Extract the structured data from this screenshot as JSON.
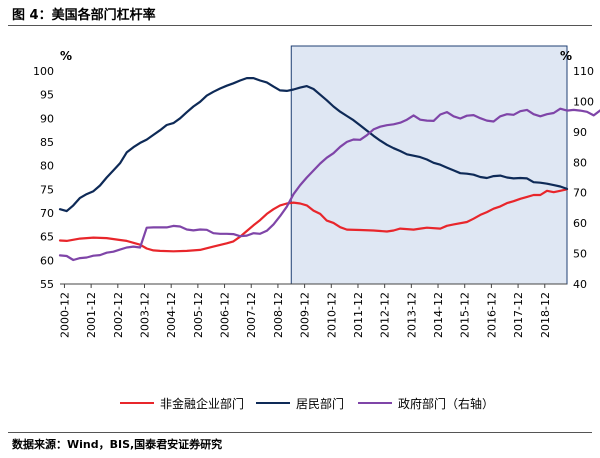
{
  "figure": {
    "title": "图 4：美国各部门杠杆率",
    "source": "数据来源：Wind，BIS,国泰君安证券研究"
  },
  "chart_data": {
    "type": "line",
    "left_axis": {
      "unit": "%",
      "min": 55,
      "max": 100,
      "ticks": [
        55,
        60,
        65,
        70,
        75,
        80,
        85,
        90,
        95,
        100
      ]
    },
    "right_axis": {
      "unit": "%",
      "min": 40,
      "max": 110,
      "ticks": [
        40,
        50,
        60,
        70,
        80,
        90,
        100,
        110
      ]
    },
    "x_ticks": [
      "2000-12",
      "2001-12",
      "2002-12",
      "2003-12",
      "2004-12",
      "2005-12",
      "2006-12",
      "2007-12",
      "2008-12",
      "2009-12",
      "2010-12",
      "2011-12",
      "2012-12",
      "2013-12",
      "2014-12",
      "2015-12",
      "2016-12",
      "2017-12",
      "2018-12"
    ],
    "shaded_start": "2009-06",
    "colors": {
      "nonfin": "#e8262b",
      "household": "#0e2a57",
      "gov": "#7f45a8",
      "shade": "#dfe7f3",
      "shade_border": "#1f3f73"
    },
    "series": [
      {
        "name": "非金融企业部门",
        "axis": "left",
        "color": "#e8262b",
        "points": [
          [
            2000.75,
            64.2
          ],
          [
            2001.0,
            64.1
          ],
          [
            2001.5,
            64.6
          ],
          [
            2002.0,
            64.8
          ],
          [
            2002.5,
            64.7
          ],
          [
            2003.0,
            64.3
          ],
          [
            2003.25,
            64.1
          ],
          [
            2003.75,
            63.3
          ],
          [
            2004.0,
            62.5
          ],
          [
            2004.25,
            62.1
          ],
          [
            2004.5,
            62.0
          ],
          [
            2005.0,
            61.9
          ],
          [
            2005.5,
            62.0
          ],
          [
            2006.0,
            62.2
          ],
          [
            2006.5,
            62.9
          ],
          [
            2007.0,
            63.6
          ],
          [
            2007.25,
            64.0
          ],
          [
            2007.5,
            65.0
          ],
          [
            2007.75,
            66.2
          ],
          [
            2008.0,
            67.4
          ],
          [
            2008.25,
            68.5
          ],
          [
            2008.5,
            69.8
          ],
          [
            2008.75,
            70.8
          ],
          [
            2009.0,
            71.6
          ],
          [
            2009.25,
            72.0
          ],
          [
            2009.5,
            72.2
          ],
          [
            2009.75,
            72.0
          ],
          [
            2010.0,
            71.6
          ],
          [
            2010.25,
            70.5
          ],
          [
            2010.5,
            69.8
          ],
          [
            2010.75,
            68.4
          ],
          [
            2011.0,
            67.9
          ],
          [
            2011.25,
            67.0
          ],
          [
            2011.5,
            66.5
          ],
          [
            2012.0,
            66.4
          ],
          [
            2012.5,
            66.3
          ],
          [
            2013.0,
            66.1
          ],
          [
            2013.25,
            66.3
          ],
          [
            2013.5,
            66.7
          ],
          [
            2014.0,
            66.5
          ],
          [
            2014.25,
            66.7
          ],
          [
            2014.5,
            66.9
          ],
          [
            2015.0,
            66.7
          ],
          [
            2015.25,
            67.3
          ],
          [
            2015.5,
            67.6
          ],
          [
            2016.0,
            68.1
          ],
          [
            2016.25,
            68.8
          ],
          [
            2016.5,
            69.6
          ],
          [
            2016.75,
            70.2
          ],
          [
            2017.0,
            70.9
          ],
          [
            2017.25,
            71.4
          ],
          [
            2017.5,
            72.1
          ],
          [
            2017.75,
            72.5
          ],
          [
            2018.0,
            73.0
          ],
          [
            2018.25,
            73.4
          ],
          [
            2018.5,
            73.8
          ],
          [
            2018.75,
            73.8
          ],
          [
            2019.0,
            74.7
          ],
          [
            2019.25,
            74.4
          ],
          [
            2019.5,
            74.7
          ],
          [
            2019.75,
            75.0
          ]
        ]
      },
      {
        "name": "居民部门",
        "axis": "left",
        "color": "#0e2a57",
        "points": [
          [
            2000.75,
            70.8
          ],
          [
            2001.0,
            70.4
          ],
          [
            2001.25,
            71.6
          ],
          [
            2001.5,
            73.2
          ],
          [
            2001.75,
            74.0
          ],
          [
            2002.0,
            74.6
          ],
          [
            2002.25,
            75.8
          ],
          [
            2002.5,
            77.5
          ],
          [
            2002.75,
            79.0
          ],
          [
            2003.0,
            80.5
          ],
          [
            2003.25,
            82.8
          ],
          [
            2003.5,
            83.9
          ],
          [
            2003.75,
            84.8
          ],
          [
            2004.0,
            85.5
          ],
          [
            2004.25,
            86.5
          ],
          [
            2004.5,
            87.5
          ],
          [
            2004.75,
            88.6
          ],
          [
            2005.0,
            89.0
          ],
          [
            2005.25,
            90.0
          ],
          [
            2005.5,
            91.3
          ],
          [
            2005.75,
            92.5
          ],
          [
            2006.0,
            93.5
          ],
          [
            2006.25,
            94.8
          ],
          [
            2006.5,
            95.6
          ],
          [
            2006.75,
            96.3
          ],
          [
            2007.0,
            96.9
          ],
          [
            2007.25,
            97.4
          ],
          [
            2007.5,
            98.0
          ],
          [
            2007.75,
            98.5
          ],
          [
            2008.0,
            98.5
          ],
          [
            2008.25,
            98.0
          ],
          [
            2008.5,
            97.6
          ],
          [
            2008.75,
            96.7
          ],
          [
            2009.0,
            95.9
          ],
          [
            2009.25,
            95.8
          ],
          [
            2009.5,
            96.1
          ],
          [
            2009.75,
            96.5
          ],
          [
            2010.0,
            96.8
          ],
          [
            2010.25,
            96.2
          ],
          [
            2010.5,
            95.0
          ],
          [
            2010.75,
            93.8
          ],
          [
            2011.0,
            92.5
          ],
          [
            2011.25,
            91.4
          ],
          [
            2011.5,
            90.5
          ],
          [
            2011.75,
            89.6
          ],
          [
            2012.0,
            88.5
          ],
          [
            2012.25,
            87.4
          ],
          [
            2012.5,
            86.3
          ],
          [
            2012.75,
            85.3
          ],
          [
            2013.0,
            84.4
          ],
          [
            2013.25,
            83.7
          ],
          [
            2013.5,
            83.1
          ],
          [
            2013.75,
            82.4
          ],
          [
            2014.0,
            82.1
          ],
          [
            2014.25,
            81.8
          ],
          [
            2014.5,
            81.3
          ],
          [
            2014.75,
            80.6
          ],
          [
            2015.0,
            80.2
          ],
          [
            2015.25,
            79.6
          ],
          [
            2015.5,
            79.0
          ],
          [
            2015.75,
            78.4
          ],
          [
            2016.0,
            78.3
          ],
          [
            2016.25,
            78.1
          ],
          [
            2016.5,
            77.6
          ],
          [
            2016.75,
            77.4
          ],
          [
            2017.0,
            77.8
          ],
          [
            2017.25,
            77.9
          ],
          [
            2017.5,
            77.5
          ],
          [
            2017.75,
            77.3
          ],
          [
            2018.0,
            77.4
          ],
          [
            2018.25,
            77.3
          ],
          [
            2018.5,
            76.5
          ],
          [
            2018.75,
            76.4
          ],
          [
            2019.0,
            76.2
          ],
          [
            2019.25,
            75.9
          ],
          [
            2019.5,
            75.6
          ],
          [
            2019.75,
            75.1
          ]
        ]
      },
      {
        "name": "政府部门（右轴）",
        "axis": "right",
        "color": "#7f45a8",
        "points": [
          [
            2000.75,
            49.4
          ],
          [
            2001.0,
            49.2
          ],
          [
            2001.25,
            47.9
          ],
          [
            2001.5,
            48.5
          ],
          [
            2001.75,
            48.7
          ],
          [
            2002.0,
            49.3
          ],
          [
            2002.25,
            49.5
          ],
          [
            2002.5,
            50.3
          ],
          [
            2002.75,
            50.6
          ],
          [
            2003.0,
            51.3
          ],
          [
            2003.25,
            52.0
          ],
          [
            2003.5,
            52.3
          ],
          [
            2003.75,
            52.0
          ],
          [
            2004.0,
            58.5
          ],
          [
            2004.25,
            58.6
          ],
          [
            2004.5,
            58.6
          ],
          [
            2004.75,
            58.6
          ],
          [
            2005.0,
            59.1
          ],
          [
            2005.25,
            58.9
          ],
          [
            2005.5,
            57.9
          ],
          [
            2005.75,
            57.6
          ],
          [
            2006.0,
            57.9
          ],
          [
            2006.25,
            57.8
          ],
          [
            2006.5,
            56.7
          ],
          [
            2006.75,
            56.5
          ],
          [
            2007.0,
            56.5
          ],
          [
            2007.25,
            56.4
          ],
          [
            2007.5,
            55.7
          ],
          [
            2007.75,
            55.9
          ],
          [
            2008.0,
            56.7
          ],
          [
            2008.25,
            56.5
          ],
          [
            2008.5,
            57.5
          ],
          [
            2008.75,
            59.6
          ],
          [
            2009.0,
            62.3
          ],
          [
            2009.25,
            65.4
          ],
          [
            2009.5,
            69.5
          ],
          [
            2009.75,
            72.5
          ],
          [
            2010.0,
            75.0
          ],
          [
            2010.25,
            77.3
          ],
          [
            2010.5,
            79.6
          ],
          [
            2010.75,
            81.5
          ],
          [
            2011.0,
            83.0
          ],
          [
            2011.25,
            85.1
          ],
          [
            2011.5,
            86.7
          ],
          [
            2011.75,
            87.5
          ],
          [
            2012.0,
            87.4
          ],
          [
            2012.25,
            88.9
          ],
          [
            2012.5,
            90.8
          ],
          [
            2012.75,
            91.7
          ],
          [
            2013.0,
            92.2
          ],
          [
            2013.25,
            92.5
          ],
          [
            2013.5,
            93.0
          ],
          [
            2013.75,
            94.0
          ],
          [
            2014.0,
            95.4
          ],
          [
            2014.25,
            94.0
          ],
          [
            2014.5,
            93.7
          ],
          [
            2014.75,
            93.6
          ],
          [
            2015.0,
            95.7
          ],
          [
            2015.25,
            96.5
          ],
          [
            2015.5,
            95.1
          ],
          [
            2015.75,
            94.4
          ],
          [
            2016.0,
            95.3
          ],
          [
            2016.25,
            95.5
          ],
          [
            2016.5,
            94.5
          ],
          [
            2016.75,
            93.7
          ],
          [
            2017.0,
            93.4
          ],
          [
            2017.25,
            95.1
          ],
          [
            2017.5,
            95.8
          ],
          [
            2017.75,
            95.6
          ],
          [
            2018.0,
            96.8
          ],
          [
            2018.25,
            97.2
          ],
          [
            2018.5,
            95.8
          ],
          [
            2018.75,
            95.1
          ],
          [
            2019.0,
            95.8
          ],
          [
            2019.25,
            96.2
          ],
          [
            2019.5,
            97.6
          ],
          [
            2019.75,
            97.0
          ],
          [
            2020.0,
            97.2
          ],
          [
            2020.25,
            97.0
          ],
          [
            2020.5,
            96.6
          ],
          [
            2020.75,
            95.4
          ],
          [
            2021.0,
            97.1
          ]
        ]
      }
    ]
  }
}
